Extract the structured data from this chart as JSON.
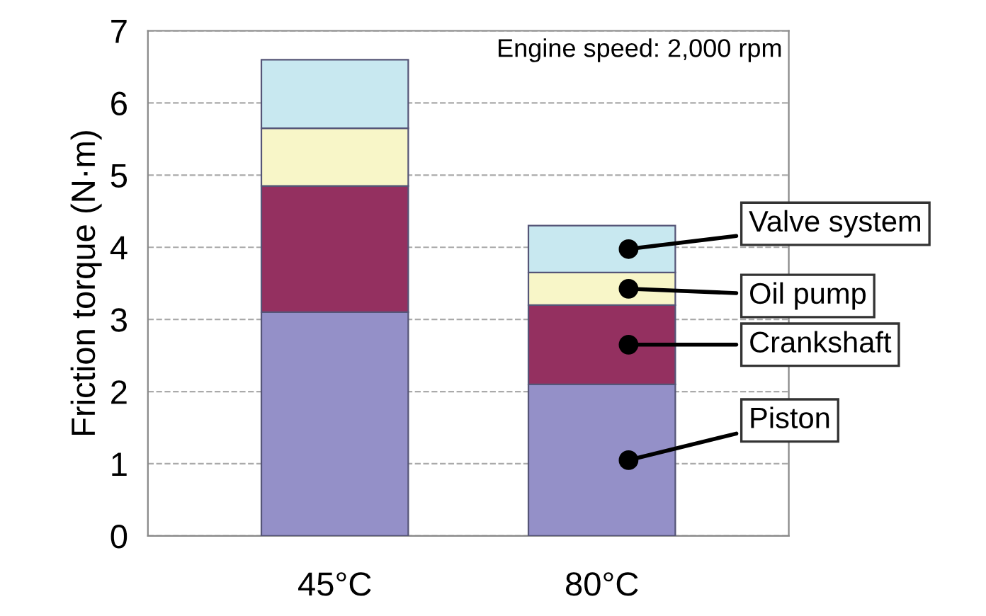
{
  "chart_data": {
    "type": "bar",
    "stacked": true,
    "ylabel": "Friction torque (N·m)",
    "categories": [
      "45°C",
      "80°C"
    ],
    "series": [
      {
        "name": "Piston",
        "color": "#9490c8",
        "values": [
          3.1,
          2.1
        ]
      },
      {
        "name": "Crankshaft",
        "color": "#943060",
        "values": [
          1.75,
          1.1
        ]
      },
      {
        "name": "Oil pump",
        "color": "#f8f6c8",
        "values": [
          0.8,
          0.45
        ]
      },
      {
        "name": "Valve system",
        "color": "#c8e8f0",
        "values": [
          0.95,
          0.65
        ]
      }
    ],
    "ylim": [
      0,
      7
    ],
    "yticks": [
      0,
      1,
      2,
      3,
      4,
      5,
      6,
      7
    ],
    "grid": "y",
    "annotations": [
      "Engine speed: 2,000 rpm"
    ]
  }
}
